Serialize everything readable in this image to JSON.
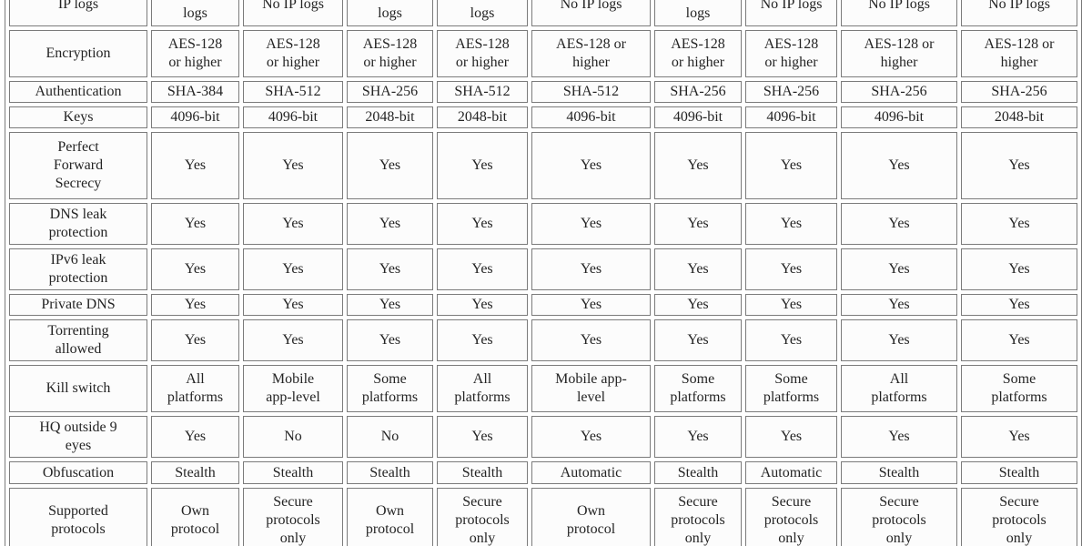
{
  "colors": {
    "border": "#7b7b7b",
    "cell_bg": "#fcfcfc",
    "text": "#242424",
    "page_bg": "#ffffff"
  },
  "table": {
    "description": "VPN provider feature comparison table, cropped at top and bottom",
    "columns": 9,
    "rows": [
      {
        "label": "IP logs",
        "values": [
          "Connection\nlogs",
          "No IP logs",
          "Connection\nlogs",
          "Connection\nlogs",
          "No IP logs",
          "Connection\nlogs",
          "No IP logs",
          "No IP logs",
          "No IP logs"
        ]
      },
      {
        "label": "Encryption",
        "values": [
          "AES-128\nor higher",
          "AES-128\nor higher",
          "AES-128\nor higher",
          "AES-128\nor higher",
          "AES-128 or\nhigher",
          "AES-128\nor higher",
          "AES-128\nor higher",
          "AES-128 or\nhigher",
          "AES-128 or\nhigher"
        ]
      },
      {
        "label": "Authentication",
        "values": [
          "SHA-384",
          "SHA-512",
          "SHA-256",
          "SHA-512",
          "SHA-512",
          "SHA-256",
          "SHA-256",
          "SHA-256",
          "SHA-256"
        ]
      },
      {
        "label": "Keys",
        "values": [
          "4096-bit",
          "4096-bit",
          "2048-bit",
          "2048-bit",
          "4096-bit",
          "4096-bit",
          "4096-bit",
          "4096-bit",
          "2048-bit"
        ]
      },
      {
        "label": "Perfect\nForward\nSecrecy",
        "values": [
          "Yes",
          "Yes",
          "Yes",
          "Yes",
          "Yes",
          "Yes",
          "Yes",
          "Yes",
          "Yes"
        ]
      },
      {
        "label": "DNS leak\nprotection",
        "values": [
          "Yes",
          "Yes",
          "Yes",
          "Yes",
          "Yes",
          "Yes",
          "Yes",
          "Yes",
          "Yes"
        ]
      },
      {
        "label": "IPv6 leak\nprotection",
        "values": [
          "Yes",
          "Yes",
          "Yes",
          "Yes",
          "Yes",
          "Yes",
          "Yes",
          "Yes",
          "Yes"
        ]
      },
      {
        "label": "Private DNS",
        "values": [
          "Yes",
          "Yes",
          "Yes",
          "Yes",
          "Yes",
          "Yes",
          "Yes",
          "Yes",
          "Yes"
        ]
      },
      {
        "label": "Torrenting\nallowed",
        "values": [
          "Yes",
          "Yes",
          "Yes",
          "Yes",
          "Yes",
          "Yes",
          "Yes",
          "Yes",
          "Yes"
        ]
      },
      {
        "label": "Kill switch",
        "values": [
          "All\nplatforms",
          "Mobile\napp-level",
          "Some\nplatforms",
          "All\nplatforms",
          "Mobile app-\nlevel",
          "Some\nplatforms",
          "Some\nplatforms",
          "All\nplatforms",
          "Some\nplatforms"
        ]
      },
      {
        "label": "HQ outside 9\neyes",
        "values": [
          "Yes",
          "No",
          "No",
          "Yes",
          "Yes",
          "Yes",
          "Yes",
          "Yes",
          "Yes"
        ]
      },
      {
        "label": "Obfuscation",
        "values": [
          "Stealth",
          "Stealth",
          "Stealth",
          "Stealth",
          "Automatic",
          "Stealth",
          "Automatic",
          "Stealth",
          "Stealth"
        ]
      },
      {
        "label": "Supported\nprotocols",
        "values": [
          "Own\nprotocol",
          "Secure\nprotocols\nonly",
          "Own\nprotocol",
          "Secure\nprotocols\nonly",
          "Own\nprotocol",
          "Secure\nprotocols\nonly",
          "Secure\nprotocols\nonly",
          "Secure\nprotocols\nonly",
          "Secure\nprotocols\nonly"
        ]
      }
    ]
  }
}
